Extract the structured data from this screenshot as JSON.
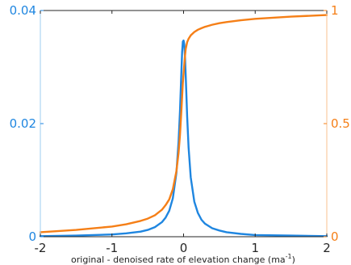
{
  "chart_data": {
    "type": "line",
    "title": "",
    "xlabel": "original - denoised rate of elevation change (ma",
    "xlabel_sup": "-1",
    "xlabel_suffix": ")",
    "xlim": [
      -2,
      2
    ],
    "x_ticks": [
      -2,
      -1,
      0,
      1,
      2
    ],
    "x_tick_labels": [
      "-2",
      "-1",
      "0",
      "1",
      "2"
    ],
    "y_left": {
      "ylim": [
        0,
        0.04
      ],
      "ticks": [
        0,
        0.02,
        0.04
      ],
      "tick_labels": [
        "0",
        "0.02",
        "0.04"
      ],
      "color": "#1f86e0"
    },
    "y_right": {
      "ylim": [
        0,
        1
      ],
      "ticks": [
        0,
        0.5,
        1
      ],
      "tick_labels": [
        "0",
        "0.5",
        "1"
      ],
      "color": "#f57f17"
    },
    "grid": false,
    "legend": "none",
    "series": [
      {
        "axis": "left",
        "color": "#1f86e0",
        "x": [
          -2,
          -1.5,
          -1,
          -0.8,
          -0.6,
          -0.5,
          -0.4,
          -0.3,
          -0.25,
          -0.2,
          -0.15,
          -0.1,
          -0.07,
          -0.05,
          -0.03,
          -0.02,
          -0.01,
          0,
          0.01,
          0.02,
          0.03,
          0.05,
          0.07,
          0.1,
          0.15,
          0.2,
          0.25,
          0.3,
          0.4,
          0.5,
          0.6,
          0.8,
          1,
          1.5,
          2
        ],
        "values": [
          0.0001,
          0.0002,
          0.0004,
          0.0006,
          0.0009,
          0.0012,
          0.0017,
          0.0026,
          0.0034,
          0.0046,
          0.0068,
          0.0113,
          0.0168,
          0.0222,
          0.0293,
          0.0327,
          0.0345,
          0.0347,
          0.034,
          0.0318,
          0.0285,
          0.0213,
          0.0158,
          0.0105,
          0.0062,
          0.0042,
          0.003,
          0.0023,
          0.0015,
          0.0011,
          0.0008,
          0.0005,
          0.0003,
          0.0002,
          0.0001
        ]
      },
      {
        "axis": "right",
        "color": "#f57f17",
        "x": [
          -2,
          -1.5,
          -1,
          -0.8,
          -0.6,
          -0.5,
          -0.4,
          -0.3,
          -0.25,
          -0.2,
          -0.15,
          -0.1,
          -0.07,
          -0.05,
          -0.03,
          -0.02,
          -0.01,
          0,
          0.01,
          0.02,
          0.03,
          0.05,
          0.07,
          0.1,
          0.15,
          0.2,
          0.25,
          0.3,
          0.4,
          0.5,
          0.6,
          0.8,
          1,
          1.5,
          2
        ],
        "values": [
          0.02,
          0.03,
          0.045,
          0.055,
          0.07,
          0.08,
          0.095,
          0.12,
          0.14,
          0.165,
          0.21,
          0.29,
          0.37,
          0.45,
          0.56,
          0.62,
          0.68,
          0.72,
          0.76,
          0.8,
          0.83,
          0.86,
          0.875,
          0.89,
          0.905,
          0.915,
          0.922,
          0.928,
          0.937,
          0.944,
          0.949,
          0.957,
          0.963,
          0.973,
          0.98
        ]
      }
    ]
  }
}
